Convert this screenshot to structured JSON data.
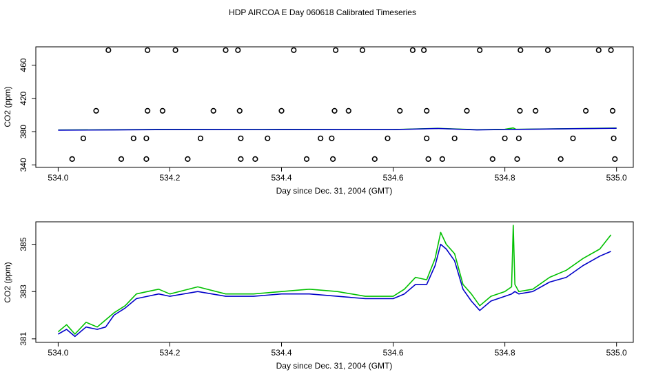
{
  "title": "HDP AIRCOA E  Day 060618  Calibrated Timeseries",
  "chart_data": [
    {
      "type": "scatter",
      "xlabel": "Day since Dec. 31, 2004 (GMT)",
      "ylabel": "CO2 (ppm)",
      "xlim": [
        533.96,
        535.03
      ],
      "ylim": [
        337,
        482
      ],
      "xticks": [
        "534.0",
        "534.2",
        "534.4",
        "534.6",
        "534.8",
        "535.0"
      ],
      "yticks": [
        "340",
        "380",
        "420",
        "460"
      ],
      "marker": "open-circle",
      "points": [
        [
          534.025,
          347
        ],
        [
          534.045,
          372
        ],
        [
          534.068,
          405
        ],
        [
          534.09,
          478
        ],
        [
          534.113,
          347
        ],
        [
          534.135,
          372
        ],
        [
          534.16,
          478
        ],
        [
          534.158,
          372
        ],
        [
          534.158,
          347
        ],
        [
          534.16,
          405
        ],
        [
          534.187,
          405
        ],
        [
          534.21,
          478
        ],
        [
          534.232,
          347
        ],
        [
          534.255,
          372
        ],
        [
          534.278,
          405
        ],
        [
          534.3,
          478
        ],
        [
          534.322,
          478
        ],
        [
          534.325,
          405
        ],
        [
          534.327,
          372
        ],
        [
          534.327,
          347
        ],
        [
          534.353,
          347
        ],
        [
          534.375,
          372
        ],
        [
          534.4,
          405
        ],
        [
          534.422,
          478
        ],
        [
          534.445,
          347
        ],
        [
          534.47,
          372
        ],
        [
          534.49,
          372
        ],
        [
          534.492,
          347
        ],
        [
          534.495,
          405
        ],
        [
          534.497,
          478
        ],
        [
          534.52,
          405
        ],
        [
          534.545,
          478
        ],
        [
          534.567,
          347
        ],
        [
          534.59,
          372
        ],
        [
          534.612,
          405
        ],
        [
          534.635,
          478
        ],
        [
          534.655,
          478
        ],
        [
          534.66,
          405
        ],
        [
          534.66,
          372
        ],
        [
          534.663,
          347
        ],
        [
          534.688,
          347
        ],
        [
          534.71,
          372
        ],
        [
          534.732,
          405
        ],
        [
          534.755,
          478
        ],
        [
          534.778,
          347
        ],
        [
          534.8,
          372
        ],
        [
          534.822,
          347
        ],
        [
          534.825,
          372
        ],
        [
          534.827,
          405
        ],
        [
          534.828,
          478
        ],
        [
          534.855,
          405
        ],
        [
          534.877,
          478
        ],
        [
          534.9,
          347
        ],
        [
          534.922,
          372
        ],
        [
          534.945,
          405
        ],
        [
          534.968,
          478
        ],
        [
          534.99,
          478
        ],
        [
          534.993,
          405
        ],
        [
          534.995,
          372
        ],
        [
          534.997,
          347
        ]
      ],
      "series": [
        {
          "color": "#00c000",
          "x": [
            534.0,
            534.1,
            534.2,
            534.3,
            534.4,
            534.5,
            534.6,
            534.68,
            534.75,
            534.8,
            534.815,
            534.82,
            534.9,
            535.0
          ],
          "y": [
            382.0,
            382.3,
            382.7,
            382.6,
            382.7,
            382.6,
            382.6,
            384.0,
            382.3,
            382.8,
            384.5,
            382.8,
            383.5,
            384.3
          ]
        },
        {
          "color": "#0000c8",
          "x": [
            534.0,
            534.1,
            534.2,
            534.3,
            534.4,
            534.5,
            534.6,
            534.68,
            534.75,
            534.8,
            534.9,
            535.0
          ],
          "y": [
            381.8,
            382.1,
            382.5,
            382.4,
            382.5,
            382.4,
            382.4,
            383.8,
            382.1,
            382.6,
            383.3,
            384.1
          ]
        }
      ]
    },
    {
      "type": "line",
      "xlabel": "Day since Dec. 31, 2004 (GMT)",
      "ylabel": "CO2 (ppm)",
      "xlim": [
        533.96,
        535.03
      ],
      "ylim": [
        380.85,
        385.95
      ],
      "xticks": [
        "534.0",
        "534.2",
        "534.4",
        "534.6",
        "534.8",
        "535.0"
      ],
      "yticks": [
        "381",
        "383",
        "385"
      ],
      "series": [
        {
          "color": "#00c000",
          "x": [
            534.0,
            534.015,
            534.03,
            534.05,
            534.07,
            534.085,
            534.1,
            534.12,
            534.14,
            534.16,
            534.18,
            534.2,
            534.25,
            534.3,
            534.35,
            534.4,
            534.45,
            534.5,
            534.55,
            534.6,
            534.62,
            534.64,
            534.66,
            534.675,
            534.685,
            534.695,
            534.71,
            534.725,
            534.74,
            534.755,
            534.775,
            534.8,
            534.812,
            534.815,
            534.818,
            534.825,
            534.85,
            534.88,
            534.91,
            534.94,
            534.97,
            534.99
          ],
          "y": [
            381.3,
            381.6,
            381.2,
            381.7,
            381.5,
            381.8,
            382.1,
            382.4,
            382.9,
            383.0,
            383.1,
            382.9,
            383.2,
            382.9,
            382.9,
            383.0,
            383.1,
            383.0,
            382.8,
            382.8,
            383.1,
            383.6,
            383.5,
            384.4,
            385.5,
            385.0,
            384.6,
            383.3,
            382.9,
            382.4,
            382.8,
            383.0,
            383.2,
            385.8,
            383.3,
            383.0,
            383.1,
            383.6,
            383.9,
            384.4,
            384.8,
            385.4
          ]
        },
        {
          "color": "#0000c8",
          "x": [
            534.0,
            534.015,
            534.03,
            534.05,
            534.07,
            534.085,
            534.1,
            534.12,
            534.14,
            534.16,
            534.18,
            534.2,
            534.25,
            534.3,
            534.35,
            534.4,
            534.45,
            534.5,
            534.55,
            534.6,
            534.62,
            534.64,
            534.66,
            534.675,
            534.685,
            534.695,
            534.71,
            534.725,
            534.74,
            534.755,
            534.775,
            534.8,
            534.812,
            534.818,
            534.825,
            534.85,
            534.88,
            534.91,
            534.94,
            534.97,
            534.99
          ],
          "y": [
            381.2,
            381.4,
            381.1,
            381.5,
            381.4,
            381.5,
            382.0,
            382.3,
            382.7,
            382.8,
            382.9,
            382.8,
            383.0,
            382.8,
            382.8,
            382.9,
            382.9,
            382.8,
            382.7,
            382.7,
            382.9,
            383.3,
            383.3,
            384.1,
            385.0,
            384.8,
            384.3,
            383.1,
            382.6,
            382.2,
            382.6,
            382.8,
            382.9,
            383.0,
            382.9,
            383.0,
            383.4,
            383.6,
            384.1,
            384.5,
            384.7
          ]
        }
      ]
    }
  ]
}
